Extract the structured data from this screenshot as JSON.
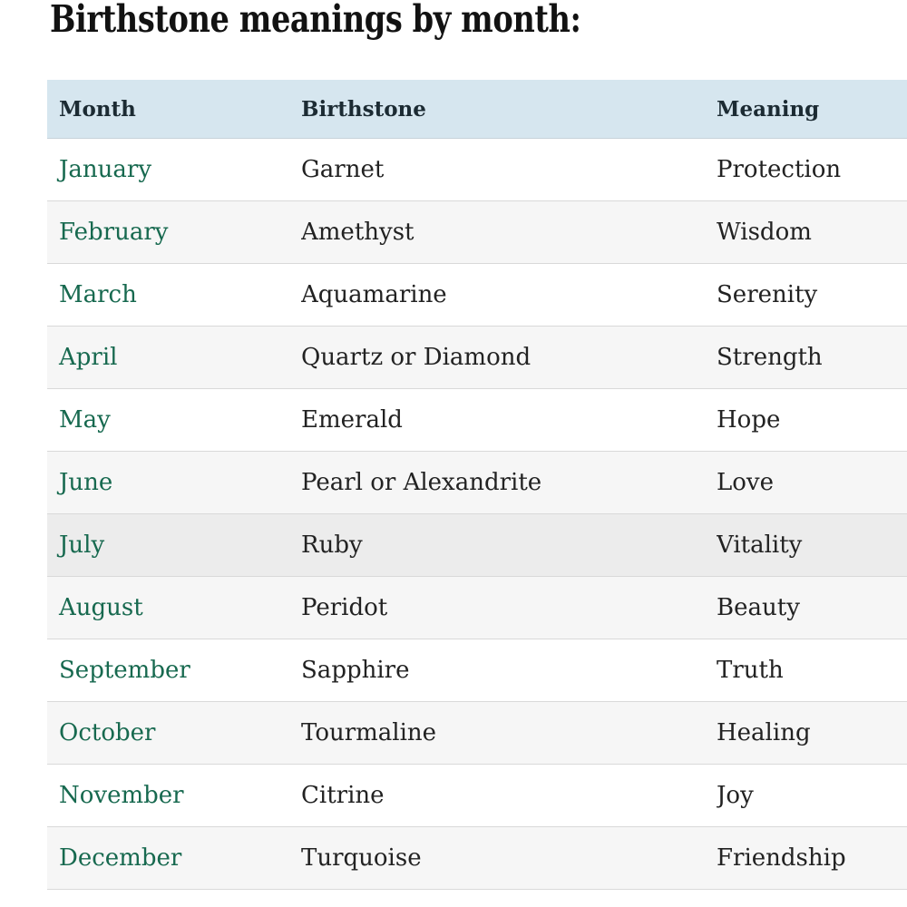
{
  "page": {
    "title": "Birthstone meanings by month:"
  },
  "table": {
    "columns": [
      "Month",
      "Birthstone",
      "Meaning"
    ],
    "highlighted_month": "July",
    "rows": [
      {
        "month": "January",
        "birthstone": "Garnet",
        "meaning": "Protection"
      },
      {
        "month": "February",
        "birthstone": "Amethyst",
        "meaning": "Wisdom"
      },
      {
        "month": "March",
        "birthstone": "Aquamarine",
        "meaning": "Serenity"
      },
      {
        "month": "April",
        "birthstone": "Quartz or Diamond",
        "meaning": "Strength"
      },
      {
        "month": "May",
        "birthstone": "Emerald",
        "meaning": "Hope"
      },
      {
        "month": "June",
        "birthstone": "Pearl or Alexandrite",
        "meaning": "Love"
      },
      {
        "month": "July",
        "birthstone": "Ruby",
        "meaning": "Vitality"
      },
      {
        "month": "August",
        "birthstone": "Peridot",
        "meaning": "Beauty"
      },
      {
        "month": "September",
        "birthstone": "Sapphire",
        "meaning": "Truth"
      },
      {
        "month": "October",
        "birthstone": "Tourmaline",
        "meaning": "Healing"
      },
      {
        "month": "November",
        "birthstone": "Citrine",
        "meaning": "Joy"
      },
      {
        "month": "December",
        "birthstone": "Turquoise",
        "meaning": "Friendship"
      }
    ]
  },
  "colors": {
    "title_text": "#121212",
    "header_bg": "#d6e6ef",
    "header_text": "#1c2b33",
    "month_link": "#17694f",
    "body_text": "#222222",
    "row_alt_bg": "#f6f6f6",
    "row_highlight_bg": "#ececec",
    "divider": "#d9d9d9"
  }
}
